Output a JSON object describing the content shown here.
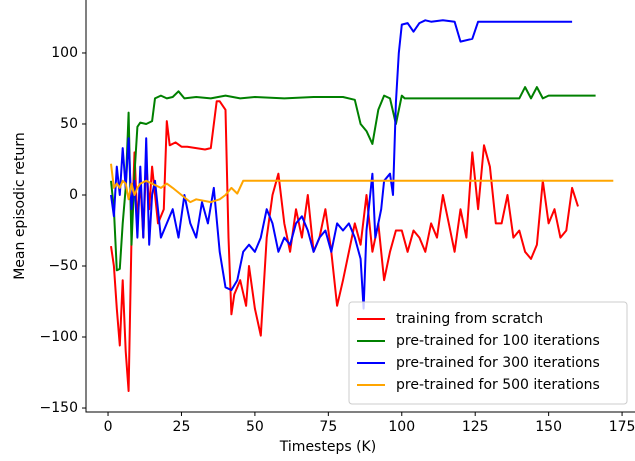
{
  "chart_data": {
    "type": "line",
    "xlabel": "Timesteps (K)",
    "ylabel": "Mean episodic return",
    "xlim": [
      -7.5,
      179.4
    ],
    "ylim": [
      -152.8,
      137.3
    ],
    "xticks": [
      0,
      25,
      50,
      75,
      100,
      125,
      150,
      175
    ],
    "yticks": [
      {
        "value": -150,
        "label": "−150"
      },
      {
        "value": -100,
        "label": "−100"
      },
      {
        "value": -50,
        "label": "−50"
      },
      0,
      50,
      100
    ],
    "legend": "lower right",
    "series": [
      {
        "name": "training from scratch",
        "color": "#ff0000",
        "x": [
          1,
          2,
          3,
          4,
          5,
          6,
          7,
          8,
          9,
          10,
          11,
          12,
          13,
          14,
          15,
          17,
          19,
          20,
          21,
          23,
          25,
          27,
          30,
          33,
          35,
          37,
          38,
          40,
          41,
          42,
          43,
          45,
          47,
          48,
          50,
          52,
          54,
          56,
          58,
          60,
          62,
          64,
          66,
          68,
          70,
          72,
          74,
          76,
          78,
          80,
          82,
          84,
          86,
          88,
          90,
          92,
          94,
          96,
          98,
          100,
          102,
          104,
          106,
          108,
          110,
          112,
          114,
          116,
          118,
          120,
          122,
          124,
          126,
          128,
          130,
          132,
          134,
          136,
          138,
          140,
          142,
          144,
          146,
          148,
          150,
          152,
          154,
          156,
          158,
          160
        ],
        "values": [
          -36,
          -50,
          -80,
          -106,
          -60,
          -110,
          -138,
          -30,
          30,
          -20,
          10,
          -30,
          25,
          -10,
          20,
          -20,
          -10,
          52,
          35,
          37,
          34,
          34,
          33,
          32,
          33,
          66,
          66,
          60,
          -30,
          -84,
          -70,
          -60,
          -78,
          -50,
          -80,
          -99,
          -30,
          0,
          15,
          -20,
          -40,
          -10,
          -30,
          0,
          -40,
          -30,
          -10,
          -40,
          -78,
          -60,
          -40,
          -20,
          -35,
          0,
          -40,
          -20,
          -60,
          -40,
          -25,
          -25,
          -40,
          -25,
          -30,
          -40,
          -20,
          -30,
          0,
          -20,
          -40,
          -10,
          -30,
          30,
          -10,
          35,
          20,
          -20,
          -20,
          0,
          -30,
          -25,
          -40,
          -45,
          -35,
          10,
          -20,
          -10,
          -30,
          -25,
          5,
          -8
        ]
      },
      {
        "name": "pre-trained for 100 iterations",
        "color": "#008000",
        "x": [
          1,
          2,
          3,
          4,
          5,
          6,
          7,
          8,
          9,
          10,
          11,
          13,
          15,
          16,
          18,
          20,
          22,
          24,
          26,
          30,
          35,
          40,
          45,
          50,
          60,
          70,
          80,
          84,
          86,
          88,
          90,
          92,
          94,
          96,
          98,
          100,
          101,
          110,
          120,
          130,
          140,
          142,
          144,
          146,
          148,
          150,
          160,
          166
        ],
        "values": [
          10,
          -10,
          -53,
          -52,
          -20,
          5,
          58,
          -35,
          15,
          48,
          51,
          50,
          52,
          68,
          70,
          68,
          69,
          73,
          68,
          69,
          68,
          70,
          68,
          69,
          68,
          69,
          69,
          67,
          50,
          45,
          36,
          60,
          70,
          68,
          50,
          70,
          68,
          68,
          68,
          68,
          68,
          76,
          68,
          76,
          68,
          70,
          70,
          70
        ]
      },
      {
        "name": "pre-trained for 300 iterations",
        "color": "#0000ff",
        "x": [
          1,
          2,
          3,
          4,
          5,
          6,
          7,
          8,
          9,
          10,
          11,
          12,
          13,
          14,
          15,
          16,
          18,
          20,
          22,
          24,
          26,
          28,
          30,
          32,
          34,
          36,
          38,
          40,
          42,
          44,
          46,
          48,
          50,
          52,
          54,
          56,
          58,
          60,
          62,
          64,
          66,
          68,
          70,
          72,
          74,
          76,
          78,
          80,
          82,
          84,
          86,
          87,
          88,
          90,
          91,
          92,
          93,
          94,
          96,
          97,
          98,
          99,
          100,
          102,
          104,
          106,
          108,
          110,
          114,
          118,
          120,
          124,
          126,
          130,
          140,
          150,
          158
        ],
        "values": [
          0,
          -15,
          20,
          0,
          33,
          5,
          40,
          -10,
          10,
          -30,
          20,
          -30,
          40,
          -35,
          0,
          10,
          -30,
          -20,
          -10,
          -30,
          0,
          -20,
          -30,
          -5,
          -20,
          5,
          -40,
          -65,
          -67,
          -60,
          -40,
          -35,
          -40,
          -30,
          -10,
          -20,
          -40,
          -30,
          -35,
          -20,
          -15,
          -25,
          -40,
          -30,
          -25,
          -40,
          -20,
          -25,
          -20,
          -30,
          -45,
          -80,
          -25,
          15,
          -30,
          -20,
          -10,
          10,
          15,
          0,
          65,
          100,
          120,
          121,
          115,
          121,
          123,
          122,
          123,
          122,
          108,
          110,
          122,
          122,
          122,
          122,
          122
        ]
      },
      {
        "name": "pre-trained for 500 iterations",
        "color": "#ffa500",
        "x": [
          1,
          2,
          3,
          4,
          5,
          6,
          7,
          8,
          9,
          10,
          11,
          13,
          15,
          18,
          20,
          22,
          25,
          28,
          30,
          35,
          38,
          40,
          42,
          44,
          46,
          50,
          60,
          70,
          80,
          90,
          100,
          120,
          140,
          160,
          170,
          172
        ],
        "values": [
          22,
          5,
          8,
          5,
          10,
          8,
          -3,
          8,
          0,
          5,
          8,
          10,
          8,
          5,
          8,
          5,
          0,
          -5,
          -3,
          -5,
          -3,
          0,
          5,
          1,
          10,
          10,
          10,
          10,
          10,
          10,
          10,
          10,
          10,
          10,
          10,
          10
        ]
      }
    ]
  }
}
